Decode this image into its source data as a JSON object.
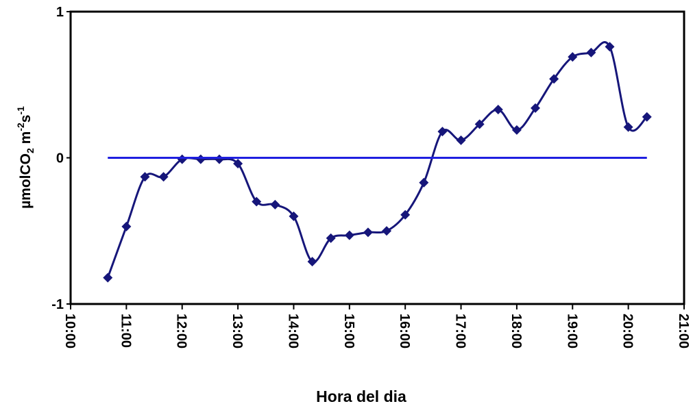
{
  "chart_data": {
    "type": "line",
    "x_label": "Hora del dia",
    "y_label_parts": [
      "µmolCO",
      "2",
      " m",
      "-2",
      "s",
      "-1"
    ],
    "xlim": [
      "10:00",
      "21:00"
    ],
    "xticks": [
      "10:00",
      "11:00",
      "12:00",
      "13:00",
      "14:00",
      "15:00",
      "16:00",
      "17:00",
      "18:00",
      "19:00",
      "20:00",
      "21:00"
    ],
    "ylim": [
      -1,
      1
    ],
    "yticks": [
      -1,
      0,
      1
    ],
    "grid": false,
    "series": [
      {
        "color": "#16167a",
        "marker": "diamond",
        "smooth": true,
        "x": [
          "10:40",
          "11:00",
          "11:20",
          "11:40",
          "12:00",
          "12:20",
          "12:40",
          "13:00",
          "13:20",
          "13:40",
          "14:00",
          "14:20",
          "14:40",
          "15:00",
          "15:20",
          "15:40",
          "16:00",
          "16:20",
          "16:40",
          "17:00",
          "17:20",
          "17:40",
          "18:00",
          "18:20",
          "18:40",
          "19:00",
          "19:20",
          "19:40",
          "20:00",
          "20:20"
        ],
        "values": [
          -0.82,
          -0.47,
          -0.13,
          -0.13,
          -0.01,
          -0.01,
          -0.01,
          -0.04,
          -0.3,
          -0.32,
          -0.4,
          -0.71,
          -0.55,
          -0.53,
          -0.51,
          -0.5,
          -0.39,
          -0.17,
          0.18,
          0.12,
          0.23,
          0.33,
          0.19,
          0.34,
          0.54,
          0.69,
          0.72,
          0.76,
          0.21,
          0.28
        ]
      },
      {
        "color": "#1f1fe0",
        "marker": "none",
        "smooth": false,
        "x": [
          "10:40",
          "20:20"
        ],
        "values": [
          0,
          0
        ]
      }
    ]
  }
}
